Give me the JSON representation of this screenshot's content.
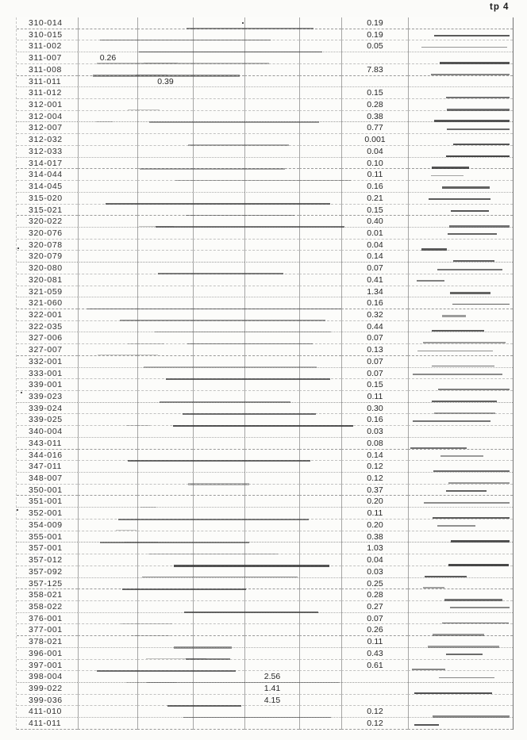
{
  "page": {
    "corner_label": "tp 4"
  },
  "table": {
    "rows": [
      {
        "code": "310-014",
        "col7": "0.19"
      },
      {
        "code": "310-015",
        "col7": "0.19"
      },
      {
        "code": "311-002",
        "col7": "0.05"
      },
      {
        "code": "311-007",
        "col2": "0.26"
      },
      {
        "code": "311-008",
        "col7": "7.83"
      },
      {
        "code": "311-011",
        "col3": "0.39"
      },
      {
        "code": "311-012",
        "col7": "0.15"
      },
      {
        "code": "312-001",
        "col7": "0.28"
      },
      {
        "code": "312-004",
        "col7": "0.38"
      },
      {
        "code": "312-007",
        "col7": "0.77"
      },
      {
        "code": "312-032",
        "col7": "0.001"
      },
      {
        "code": "312-033",
        "col7": "0.04"
      },
      {
        "code": "314-017",
        "col7": "0.10"
      },
      {
        "code": "314-044",
        "col7": "0.11"
      },
      {
        "code": "314-045",
        "col7": "0.16"
      },
      {
        "code": "315-020",
        "col7": "0.21"
      },
      {
        "code": "315-021",
        "col7": "0.15"
      },
      {
        "code": "320-022",
        "col7": "0.40"
      },
      {
        "code": "320-076",
        "col7": "0.01"
      },
      {
        "code": "320-078",
        "col7": "0.04"
      },
      {
        "code": "320-079",
        "col7": "0.14"
      },
      {
        "code": "320-080",
        "col7": "0.07"
      },
      {
        "code": "320-081",
        "col7": "0.41"
      },
      {
        "code": "321-059",
        "col7": "1.34"
      },
      {
        "code": "321-060",
        "col7": "0.16"
      },
      {
        "code": "322-001",
        "col7": "0.32"
      },
      {
        "code": "322-035",
        "col7": "0.44"
      },
      {
        "code": "327-006",
        "col7": "0.07"
      },
      {
        "code": "327-007",
        "col7": "0.13"
      },
      {
        "code": "332-001",
        "col7": "0.07"
      },
      {
        "code": "333-001",
        "col7": "0.07"
      },
      {
        "code": "339-001",
        "col7": "0.15"
      },
      {
        "code": "339-023",
        "col7": "0.11"
      },
      {
        "code": "339-024",
        "col7": "0.30"
      },
      {
        "code": "339-025",
        "col7": "0.16"
      },
      {
        "code": "340-004",
        "col7": "0.03"
      },
      {
        "code": "343-011",
        "col7": "0.08"
      },
      {
        "code": "344-016",
        "col7": "0.14"
      },
      {
        "code": "347-011",
        "col7": "0.12"
      },
      {
        "code": "348-007",
        "col7": "0.12"
      },
      {
        "code": "350-001",
        "col7": "0.37"
      },
      {
        "code": "351-001",
        "col7": "0.20"
      },
      {
        "code": "352-001",
        "col7": "0.11"
      },
      {
        "code": "354-009",
        "col7": "0.20"
      },
      {
        "code": "355-001",
        "col7": "0.38"
      },
      {
        "code": "357-001",
        "col7": "1.03"
      },
      {
        "code": "357-012",
        "col7": "0.04"
      },
      {
        "code": "357-092",
        "col7": "0.03"
      },
      {
        "code": "357-125",
        "col7": "0.25"
      },
      {
        "code": "358-021",
        "col7": "0.28"
      },
      {
        "code": "358-022",
        "col7": "0.27"
      },
      {
        "code": "376-001",
        "col7": "0.07"
      },
      {
        "code": "377-001",
        "col7": "0.26"
      },
      {
        "code": "378-021",
        "col7": "0.11"
      },
      {
        "code": "396-001",
        "col7": "0.43"
      },
      {
        "code": "397-001",
        "col7": "0.61"
      },
      {
        "code": "398-004",
        "col5": "2.56"
      },
      {
        "code": "399-022",
        "col5": "1.41"
      },
      {
        "code": "399-036",
        "col5": "4.15"
      },
      {
        "code": "411-010",
        "col7": "0.12"
      },
      {
        "code": "411-011",
        "col7": "0.12"
      }
    ]
  }
}
